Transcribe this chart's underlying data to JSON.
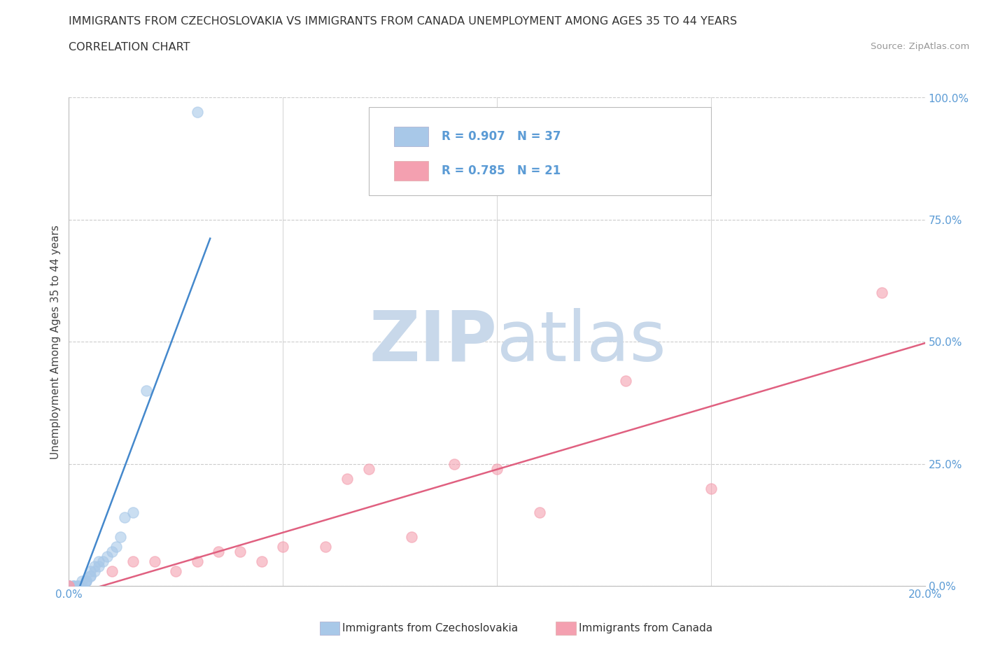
{
  "title_line1": "IMMIGRANTS FROM CZECHOSLOVAKIA VS IMMIGRANTS FROM CANADA UNEMPLOYMENT AMONG AGES 35 TO 44 YEARS",
  "title_line2": "CORRELATION CHART",
  "source_text": "Source: ZipAtlas.com",
  "ylabel": "Unemployment Among Ages 35 to 44 years",
  "xlim": [
    0.0,
    0.2
  ],
  "ylim": [
    0.0,
    1.0
  ],
  "xtick_values": [
    0.0,
    0.05,
    0.1,
    0.15,
    0.2
  ],
  "ytick_labels": [
    "0.0%",
    "25.0%",
    "50.0%",
    "75.0%",
    "100.0%"
  ],
  "ytick_values": [
    0.0,
    0.25,
    0.5,
    0.75,
    1.0
  ],
  "legend_r1": "R = 0.907",
  "legend_n1": "N = 37",
  "legend_r2": "R = 0.785",
  "legend_n2": "N = 21",
  "blue_scatter_color": "#a8c8e8",
  "pink_scatter_color": "#f4a0b0",
  "blue_line_color": "#4488cc",
  "pink_line_color": "#e06080",
  "watermark_zip": "ZIP",
  "watermark_atlas": "atlas",
  "watermark_color": "#c8d8ea",
  "background_color": "#ffffff",
  "grid_color": "#cccccc",
  "tick_color": "#5b9bd5",
  "czecho_x": [
    0.0,
    0.0,
    0.0,
    0.0,
    0.0,
    0.0,
    0.0,
    0.0,
    0.0,
    0.0,
    0.001,
    0.001,
    0.001,
    0.002,
    0.002,
    0.002,
    0.003,
    0.003,
    0.004,
    0.004,
    0.004,
    0.005,
    0.005,
    0.005,
    0.006,
    0.006,
    0.007,
    0.007,
    0.008,
    0.009,
    0.01,
    0.011,
    0.012,
    0.013,
    0.015,
    0.018,
    0.03
  ],
  "czecho_y": [
    0.0,
    0.0,
    0.0,
    0.0,
    0.0,
    0.0,
    0.0,
    0.0,
    0.0,
    0.0,
    0.0,
    0.0,
    0.0,
    0.0,
    0.0,
    0.0,
    0.0,
    0.01,
    0.01,
    0.01,
    0.01,
    0.02,
    0.02,
    0.03,
    0.03,
    0.04,
    0.04,
    0.05,
    0.05,
    0.06,
    0.07,
    0.08,
    0.1,
    0.14,
    0.15,
    0.4,
    0.97
  ],
  "canada_x": [
    0.0,
    0.0,
    0.01,
    0.015,
    0.02,
    0.025,
    0.03,
    0.035,
    0.04,
    0.045,
    0.05,
    0.06,
    0.065,
    0.07,
    0.08,
    0.09,
    0.1,
    0.11,
    0.13,
    0.15,
    0.19
  ],
  "canada_y": [
    0.0,
    0.0,
    0.03,
    0.05,
    0.05,
    0.03,
    0.05,
    0.07,
    0.07,
    0.05,
    0.08,
    0.08,
    0.22,
    0.24,
    0.1,
    0.25,
    0.24,
    0.15,
    0.42,
    0.2,
    0.6
  ]
}
